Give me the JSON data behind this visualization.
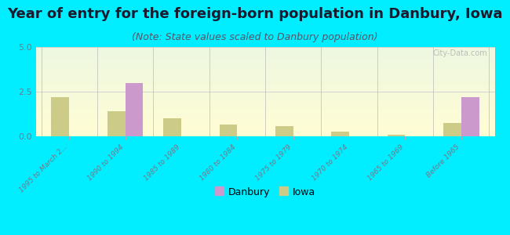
{
  "title": "Year of entry for the foreign-born population in Danbury, Iowa",
  "subtitle": "(Note: State values scaled to Danbury population)",
  "categories": [
    "1995 to March 2...",
    "1990 to 1994",
    "1985 to 1989",
    "1980 to 1984",
    "1975 to 1979",
    "1970 to 1974",
    "1965 to 1969",
    "Before 1965"
  ],
  "danbury_values": [
    0,
    3.0,
    0,
    0,
    0,
    0,
    0,
    2.2
  ],
  "iowa_values": [
    2.2,
    1.4,
    1.0,
    0.65,
    0.55,
    0.28,
    0.1,
    0.75
  ],
  "ylim": [
    0,
    5
  ],
  "yticks": [
    0,
    2.5,
    5
  ],
  "danbury_color": "#cc99cc",
  "iowa_color": "#cccc88",
  "bg_outer": "#00eeff",
  "title_color": "#1a1a2e",
  "subtitle_color": "#555566",
  "title_fontsize": 13,
  "subtitle_fontsize": 9,
  "watermark": "City-Data.com"
}
